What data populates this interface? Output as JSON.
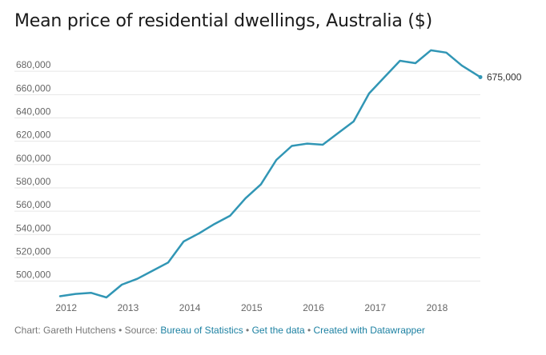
{
  "title": "Mean price of residential dwellings, Australia ($)",
  "footer": {
    "credit": "Chart: Gareth Hutchens",
    "source_prefix": "Source: ",
    "source_link": "Bureau of Statistics",
    "get_data": "Get the data",
    "created_with": "Created with Datawrapper",
    "separator": " • "
  },
  "chart_data": {
    "type": "line",
    "title": "Mean price of residential dwellings, Australia ($)",
    "xlabel": "",
    "ylabel": "",
    "x": [
      2011.9,
      2012.15,
      2012.4,
      2012.65,
      2012.9,
      2013.15,
      2013.4,
      2013.65,
      2013.9,
      2014.15,
      2014.4,
      2014.65,
      2014.9,
      2015.15,
      2015.4,
      2015.65,
      2015.9,
      2016.15,
      2016.4,
      2016.65,
      2016.9,
      2017.15,
      2017.4,
      2017.65,
      2017.9,
      2018.15,
      2018.4,
      2018.7
    ],
    "values": [
      487000,
      489000,
      490000,
      486000,
      497000,
      502000,
      509000,
      516000,
      534000,
      541000,
      549000,
      556000,
      571000,
      583000,
      604000,
      616000,
      618000,
      617000,
      627000,
      637000,
      661000,
      675000,
      689000,
      687000,
      698000,
      696000,
      685000,
      675000
    ],
    "end_label": "675,000",
    "x_ticks": [
      2012,
      2013,
      2014,
      2015,
      2016,
      2017,
      2018
    ],
    "x_tick_labels": [
      "2012",
      "2013",
      "2014",
      "2015",
      "2016",
      "2017",
      "2018"
    ],
    "y_ticks": [
      500000,
      520000,
      540000,
      560000,
      580000,
      600000,
      620000,
      640000,
      660000,
      680000
    ],
    "y_tick_labels": [
      "500,000",
      "520,000",
      "540,000",
      "560,000",
      "580,000",
      "600,000",
      "620,000",
      "640,000",
      "660,000",
      "680,000"
    ],
    "xlim": [
      2011.9,
      2018.7
    ],
    "ylim": [
      486000,
      700000
    ],
    "grid": true,
    "line_color": "#3196b5",
    "grid_color": "#e6e6e6"
  }
}
